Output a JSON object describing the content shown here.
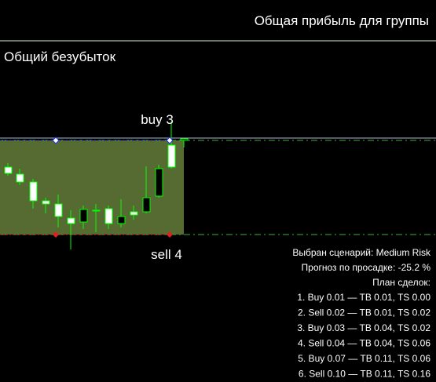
{
  "header": {
    "title": "Общая прибыль для группы"
  },
  "breakeven_label": "Общий безубыток",
  "chart": {
    "buy_label": "buy 3",
    "sell_label": "sell 4"
  },
  "panel": {
    "scenario": "Выбран сценарий: Medium Risk",
    "drawdown_forecast": "Прогноз по просадке: -25.2 %",
    "plan_title": "План сделок:",
    "plan": [
      "1. Buy 0.01 —  TB 0.01, TS 0.00",
      "2. Sell 0.02 —  TB 0.01, TS 0.02",
      "3. Buy 0.03 —  TB 0.04, TS 0.02",
      "4. Sell 0.04 —  TB 0.04, TS 0.06",
      "5. Buy 0.07 —  TB 0.11, TS 0.06",
      "6. Sell 0.10 —  TB 0.11, TS 0.16"
    ]
  }
}
